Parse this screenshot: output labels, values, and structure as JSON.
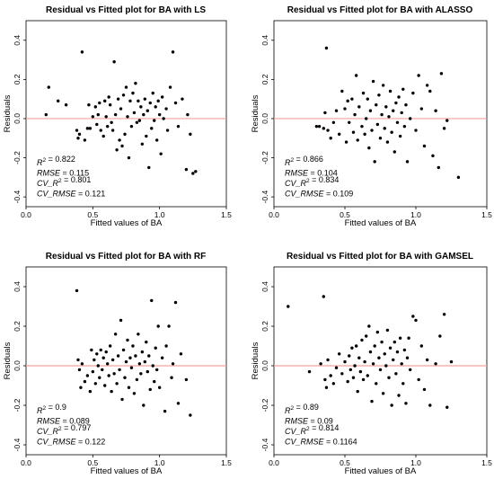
{
  "chart_data": [
    {
      "type": "scatter",
      "title": "Residual vs Fitted plot for BA with LS",
      "xlabel": "Fitted values of BA",
      "ylabel": "Residuals",
      "xlim": [
        0.0,
        1.5
      ],
      "ylim": [
        -0.45,
        0.5
      ],
      "xticks": [
        "0.0",
        "0.5",
        "1.0",
        "1.5"
      ],
      "yticks": [
        "-0.4",
        "-0.2",
        "0.0",
        "0.2",
        "0.4"
      ],
      "reference_line": {
        "y": 0.0,
        "color": "#f4a0a0"
      },
      "stats": [
        {
          "label": "R^2",
          "value": "0.822"
        },
        {
          "label": "RMSE",
          "value": "0.115"
        },
        {
          "label": "CV_R^2",
          "value": "0.801"
        },
        {
          "label": "CV_RMSE",
          "value": "0.121"
        }
      ],
      "points": [
        [
          0.15,
          0.02
        ],
        [
          0.17,
          0.16
        ],
        [
          0.24,
          0.09
        ],
        [
          0.3,
          0.07
        ],
        [
          0.38,
          -0.06
        ],
        [
          0.39,
          -0.1
        ],
        [
          0.4,
          -0.08
        ],
        [
          0.42,
          0.34
        ],
        [
          0.44,
          -0.11
        ],
        [
          0.46,
          -0.05
        ],
        [
          0.47,
          0.07
        ],
        [
          0.48,
          -0.05
        ],
        [
          0.5,
          0.01
        ],
        [
          0.52,
          0.06
        ],
        [
          0.53,
          -0.03
        ],
        [
          0.54,
          0.02
        ],
        [
          0.55,
          0.08
        ],
        [
          0.56,
          -0.06
        ],
        [
          0.58,
          -0.09
        ],
        [
          0.59,
          0.09
        ],
        [
          0.6,
          0.01
        ],
        [
          0.61,
          -0.04
        ],
        [
          0.62,
          0.11
        ],
        [
          0.63,
          0.07
        ],
        [
          0.64,
          -0.02
        ],
        [
          0.65,
          -0.06
        ],
        [
          0.66,
          0.29
        ],
        [
          0.67,
          0.02
        ],
        [
          0.68,
          -0.16
        ],
        [
          0.69,
          0.1
        ],
        [
          0.7,
          -0.11
        ],
        [
          0.71,
          0.05
        ],
        [
          0.72,
          -0.14
        ],
        [
          0.73,
          0.12
        ],
        [
          0.74,
          -0.08
        ],
        [
          0.75,
          0.16
        ],
        [
          0.76,
          0.01
        ],
        [
          0.77,
          -0.2
        ],
        [
          0.78,
          0.09
        ],
        [
          0.79,
          -0.04
        ],
        [
          0.8,
          0.13
        ],
        [
          0.81,
          0.03
        ],
        [
          0.82,
          0.18
        ],
        [
          0.83,
          -0.02
        ],
        [
          0.84,
          0.09
        ],
        [
          0.85,
          -0.01
        ],
        [
          0.86,
          0.06
        ],
        [
          0.87,
          -0.13
        ],
        [
          0.88,
          0.02
        ],
        [
          0.89,
          0.1
        ],
        [
          0.9,
          -0.09
        ],
        [
          0.91,
          0.04
        ],
        [
          0.92,
          -0.25
        ],
        [
          0.93,
          0.08
        ],
        [
          0.94,
          -0.05
        ],
        [
          0.95,
          0.13
        ],
        [
          0.96,
          -0.01
        ],
        [
          0.97,
          0.06
        ],
        [
          0.98,
          -0.11
        ],
        [
          0.99,
          0.09
        ],
        [
          1.0,
          0.02
        ],
        [
          1.01,
          -0.18
        ],
        [
          1.02,
          0.11
        ],
        [
          1.03,
          0.0
        ],
        [
          1.05,
          0.05
        ],
        [
          1.06,
          -0.06
        ],
        [
          1.08,
          0.16
        ],
        [
          1.1,
          0.34
        ],
        [
          1.12,
          0.08
        ],
        [
          1.14,
          -0.04
        ],
        [
          1.17,
          0.1
        ],
        [
          1.2,
          -0.26
        ],
        [
          1.21,
          0.02
        ],
        [
          1.23,
          -0.08
        ],
        [
          1.25,
          -0.28
        ],
        [
          1.27,
          -0.27
        ]
      ]
    },
    {
      "type": "scatter",
      "title": "Residual vs Fitted plot for BA with ALASSO",
      "xlabel": "Fitted values of BA",
      "ylabel": "Residuals",
      "xlim": [
        0.0,
        1.5
      ],
      "ylim": [
        -0.45,
        0.5
      ],
      "xticks": [
        "0.0",
        "0.5",
        "1.0",
        "1.5"
      ],
      "yticks": [
        "-0.4",
        "-0.2",
        "0.0",
        "0.2",
        "0.4"
      ],
      "reference_line": {
        "y": 0.0,
        "color": "#f4a0a0"
      },
      "stats": [
        {
          "label": "R^2",
          "value": "0.866"
        },
        {
          "label": "RMSE",
          "value": "0.104"
        },
        {
          "label": "CV_R^2",
          "value": "0.834"
        },
        {
          "label": "CV_RMSE",
          "value": "0.109"
        }
      ],
      "points": [
        [
          0.3,
          -0.04
        ],
        [
          0.32,
          -0.04
        ],
        [
          0.35,
          -0.05
        ],
        [
          0.36,
          0.03
        ],
        [
          0.37,
          0.36
        ],
        [
          0.38,
          -0.06
        ],
        [
          0.4,
          -0.1
        ],
        [
          0.42,
          -0.02
        ],
        [
          0.44,
          0.04
        ],
        [
          0.46,
          -0.08
        ],
        [
          0.48,
          0.14
        ],
        [
          0.5,
          0.05
        ],
        [
          0.51,
          -0.12
        ],
        [
          0.52,
          0.09
        ],
        [
          0.53,
          -0.02
        ],
        [
          0.55,
          0.1
        ],
        [
          0.56,
          -0.07
        ],
        [
          0.57,
          0.02
        ],
        [
          0.58,
          0.22
        ],
        [
          0.59,
          -0.11
        ],
        [
          0.6,
          0.06
        ],
        [
          0.62,
          -0.04
        ],
        [
          0.63,
          0.13
        ],
        [
          0.64,
          -0.08
        ],
        [
          0.65,
          0.0
        ],
        [
          0.66,
          0.1
        ],
        [
          0.67,
          -0.15
        ],
        [
          0.68,
          0.04
        ],
        [
          0.69,
          -0.06
        ],
        [
          0.7,
          0.19
        ],
        [
          0.71,
          -0.22
        ],
        [
          0.72,
          0.07
        ],
        [
          0.73,
          -0.03
        ],
        [
          0.74,
          0.12
        ],
        [
          0.75,
          -0.1
        ],
        [
          0.76,
          0.02
        ],
        [
          0.77,
          0.17
        ],
        [
          0.78,
          -0.05
        ],
        [
          0.79,
          0.06
        ],
        [
          0.8,
          -0.12
        ],
        [
          0.81,
          0.01
        ],
        [
          0.82,
          0.14
        ],
        [
          0.83,
          -0.07
        ],
        [
          0.84,
          0.04
        ],
        [
          0.85,
          -0.17
        ],
        [
          0.86,
          0.08
        ],
        [
          0.87,
          -0.02
        ],
        [
          0.88,
          0.11
        ],
        [
          0.89,
          -0.09
        ],
        [
          0.9,
          0.03
        ],
        [
          0.91,
          0.15
        ],
        [
          0.92,
          -0.04
        ],
        [
          0.93,
          0.07
        ],
        [
          0.94,
          -0.22
        ],
        [
          0.96,
          0.0
        ],
        [
          0.98,
          0.13
        ],
        [
          1.0,
          -0.06
        ],
        [
          1.02,
          0.22
        ],
        [
          1.04,
          0.05
        ],
        [
          1.06,
          -0.14
        ],
        [
          1.08,
          0.17
        ],
        [
          1.1,
          0.14
        ],
        [
          1.12,
          -0.19
        ],
        [
          1.14,
          0.04
        ],
        [
          1.16,
          -0.25
        ],
        [
          1.18,
          0.23
        ],
        [
          1.2,
          -0.05
        ],
        [
          1.22,
          -0.01
        ],
        [
          1.3,
          -0.3
        ]
      ]
    },
    {
      "type": "scatter",
      "title": "Residual vs Fitted plot for BA with RF",
      "xlabel": "Fitted values of BA",
      "ylabel": "Residuals",
      "xlim": [
        0.0,
        1.5
      ],
      "ylim": [
        -0.45,
        0.5
      ],
      "xticks": [
        "0.0",
        "0.5",
        "1.0",
        "1.5"
      ],
      "yticks": [
        "-0.4",
        "-0.2",
        "0.0",
        "0.2",
        "0.4"
      ],
      "reference_line": {
        "y": 0.0,
        "color": "#f4a0a0"
      },
      "stats": [
        {
          "label": "R^2",
          "value": "0.9"
        },
        {
          "label": "RMSE",
          "value": "0.089"
        },
        {
          "label": "CV_R^2",
          "value": "0.797"
        },
        {
          "label": "CV_RMSE",
          "value": "0.122"
        }
      ],
      "points": [
        [
          0.38,
          0.38
        ],
        [
          0.39,
          0.03
        ],
        [
          0.4,
          -0.02
        ],
        [
          0.41,
          -0.11
        ],
        [
          0.42,
          0.01
        ],
        [
          0.44,
          -0.08
        ],
        [
          0.46,
          -0.05
        ],
        [
          0.48,
          -0.13
        ],
        [
          0.49,
          0.08
        ],
        [
          0.5,
          -0.03
        ],
        [
          0.51,
          0.03
        ],
        [
          0.52,
          -0.09
        ],
        [
          0.53,
          0.06
        ],
        [
          0.54,
          0.0
        ],
        [
          0.55,
          -0.06
        ],
        [
          0.56,
          0.08
        ],
        [
          0.57,
          -0.02
        ],
        [
          0.58,
          0.04
        ],
        [
          0.59,
          -0.1
        ],
        [
          0.6,
          0.07
        ],
        [
          0.61,
          0.01
        ],
        [
          0.62,
          -0.05
        ],
        [
          0.63,
          0.1
        ],
        [
          0.64,
          -0.13
        ],
        [
          0.65,
          0.03
        ],
        [
          0.66,
          -0.04
        ],
        [
          0.67,
          0.16
        ],
        [
          0.68,
          -0.09
        ],
        [
          0.69,
          0.05
        ],
        [
          0.7,
          -0.02
        ],
        [
          0.71,
          0.23
        ],
        [
          0.72,
          -0.17
        ],
        [
          0.73,
          0.08
        ],
        [
          0.74,
          -0.06
        ],
        [
          0.75,
          0.02
        ],
        [
          0.76,
          0.13
        ],
        [
          0.77,
          -0.11
        ],
        [
          0.78,
          0.04
        ],
        [
          0.79,
          -0.01
        ],
        [
          0.8,
          0.1
        ],
        [
          0.81,
          -0.14
        ],
        [
          0.82,
          0.05
        ],
        [
          0.83,
          -0.07
        ],
        [
          0.84,
          0.16
        ],
        [
          0.85,
          0.01
        ],
        [
          0.86,
          -0.04
        ],
        [
          0.87,
          0.07
        ],
        [
          0.88,
          -0.2
        ],
        [
          0.89,
          0.02
        ],
        [
          0.9,
          0.12
        ],
        [
          0.91,
          -0.03
        ],
        [
          0.92,
          0.05
        ],
        [
          0.93,
          -0.12
        ],
        [
          0.94,
          0.33
        ],
        [
          0.95,
          0.0
        ],
        [
          0.96,
          -0.08
        ],
        [
          0.97,
          0.09
        ],
        [
          0.98,
          -0.02
        ],
        [
          0.99,
          0.2
        ],
        [
          1.0,
          -0.11
        ],
        [
          1.02,
          0.04
        ],
        [
          1.04,
          -0.23
        ],
        [
          1.05,
          0.1
        ],
        [
          1.07,
          0.2
        ],
        [
          1.09,
          -0.06
        ],
        [
          1.1,
          0.01
        ],
        [
          1.12,
          0.32
        ],
        [
          1.14,
          -0.19
        ],
        [
          1.16,
          0.06
        ],
        [
          1.2,
          -0.07
        ],
        [
          1.23,
          -0.25
        ]
      ]
    },
    {
      "type": "scatter",
      "title": "Residual vs Fitted plot for BA with GAMSEL",
      "xlabel": "Fitted values of BA",
      "ylabel": "Residuals",
      "xlim": [
        0.0,
        1.5
      ],
      "ylim": [
        -0.45,
        0.5
      ],
      "xticks": [
        "0.0",
        "0.5",
        "1.0",
        "1.5"
      ],
      "yticks": [
        "-0.4",
        "-0.2",
        "0.0",
        "0.2",
        "0.4"
      ],
      "reference_line": {
        "y": 0.0,
        "color": "#f4a0a0"
      },
      "stats": [
        {
          "label": "R^2",
          "value": "0.89"
        },
        {
          "label": "RMSE",
          "value": "0.09"
        },
        {
          "label": "CV_R^2",
          "value": "0.814"
        },
        {
          "label": "CV_RMSE",
          "value": "0.1164"
        }
      ],
      "points": [
        [
          0.1,
          0.3
        ],
        [
          0.25,
          -0.03
        ],
        [
          0.33,
          0.01
        ],
        [
          0.35,
          0.35
        ],
        [
          0.36,
          -0.07
        ],
        [
          0.37,
          -0.11
        ],
        [
          0.38,
          0.03
        ],
        [
          0.4,
          -0.05
        ],
        [
          0.42,
          -0.09
        ],
        [
          0.44,
          -0.01
        ],
        [
          0.46,
          0.06
        ],
        [
          0.48,
          -0.04
        ],
        [
          0.5,
          0.02
        ],
        [
          0.52,
          -0.08
        ],
        [
          0.53,
          0.05
        ],
        [
          0.54,
          -0.02
        ],
        [
          0.55,
          0.09
        ],
        [
          0.56,
          -0.06
        ],
        [
          0.57,
          0.0
        ],
        [
          0.58,
          0.1
        ],
        [
          0.59,
          -0.13
        ],
        [
          0.6,
          0.04
        ],
        [
          0.61,
          -0.03
        ],
        [
          0.62,
          0.13
        ],
        [
          0.63,
          -0.07
        ],
        [
          0.64,
          0.02
        ],
        [
          0.65,
          0.15
        ],
        [
          0.66,
          -0.05
        ],
        [
          0.67,
          0.2
        ],
        [
          0.68,
          0.07
        ],
        [
          0.69,
          -0.18
        ],
        [
          0.7,
          0.01
        ],
        [
          0.71,
          0.1
        ],
        [
          0.72,
          -0.09
        ],
        [
          0.73,
          0.17
        ],
        [
          0.74,
          0.04
        ],
        [
          0.75,
          -0.02
        ],
        [
          0.76,
          0.12
        ],
        [
          0.77,
          -0.14
        ],
        [
          0.78,
          0.06
        ],
        [
          0.79,
          0.0
        ],
        [
          0.8,
          0.18
        ],
        [
          0.81,
          -0.06
        ],
        [
          0.82,
          0.09
        ],
        [
          0.83,
          -0.2
        ],
        [
          0.84,
          0.03
        ],
        [
          0.85,
          0.12
        ],
        [
          0.86,
          -0.04
        ],
        [
          0.87,
          0.07
        ],
        [
          0.88,
          -0.15
        ],
        [
          0.89,
          0.14
        ],
        [
          0.9,
          0.01
        ],
        [
          0.91,
          -0.09
        ],
        [
          0.92,
          0.08
        ],
        [
          0.93,
          -0.19
        ],
        [
          0.94,
          0.04
        ],
        [
          0.95,
          0.14
        ],
        [
          0.96,
          -0.02
        ],
        [
          0.98,
          0.25
        ],
        [
          1.0,
          0.23
        ],
        [
          1.02,
          -0.07
        ],
        [
          1.04,
          0.1
        ],
        [
          1.06,
          -0.12
        ],
        [
          1.08,
          0.03
        ],
        [
          1.1,
          -0.2
        ],
        [
          1.14,
          0.01
        ],
        [
          1.17,
          0.15
        ],
        [
          1.2,
          0.26
        ],
        [
          1.22,
          -0.21
        ],
        [
          1.25,
          0.02
        ]
      ]
    }
  ]
}
